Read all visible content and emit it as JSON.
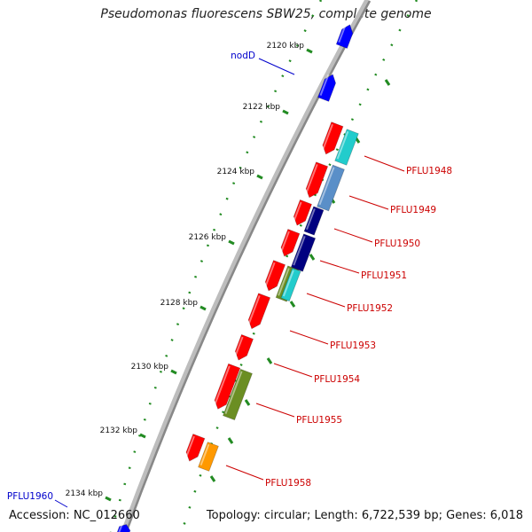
{
  "title": "Pseudomonas fluorescens SBW25, complete genome",
  "accession_text": "Accession: NC_012660",
  "topology_text": "Topology: circular; Length: 6,722,539 bp; Genes: 6,018",
  "scale_ticks": [
    {
      "label": "2120 kbp"
    },
    {
      "label": "2122 kbp"
    },
    {
      "label": "2124 kbp"
    },
    {
      "label": "2126 kbp"
    },
    {
      "label": "2128 kbp"
    },
    {
      "label": "2130 kbp"
    },
    {
      "label": "2132 kbp"
    },
    {
      "label": "2134 kbp"
    }
  ],
  "gene_labels": [
    {
      "label": "nodD",
      "color": "#0000cc"
    },
    {
      "label": "PFLU1948",
      "color": "#cc0000"
    },
    {
      "label": "PFLU1949",
      "color": "#cc0000"
    },
    {
      "label": "PFLU1950",
      "color": "#cc0000"
    },
    {
      "label": "PFLU1951",
      "color": "#cc0000"
    },
    {
      "label": "PFLU1952",
      "color": "#cc0000"
    },
    {
      "label": "PFLU1953",
      "color": "#cc0000"
    },
    {
      "label": "PFLU1954",
      "color": "#cc0000"
    },
    {
      "label": "PFLU1955",
      "color": "#cc0000"
    },
    {
      "label": "PFLU1958",
      "color": "#cc0000"
    },
    {
      "label": "PFLU1960",
      "color": "#0000cc"
    }
  ],
  "colors": {
    "backbone": "#888888",
    "forward_gene": "#ff0000",
    "reverse_gene": "#0000ff",
    "cyan_feature": "#22cccc",
    "steelblue_feature": "#5a8fc8",
    "navy_feature": "#000080",
    "olive_feature": "#6b8e23",
    "orange_feature": "#ff9900",
    "dotted_track": "#228b22"
  }
}
